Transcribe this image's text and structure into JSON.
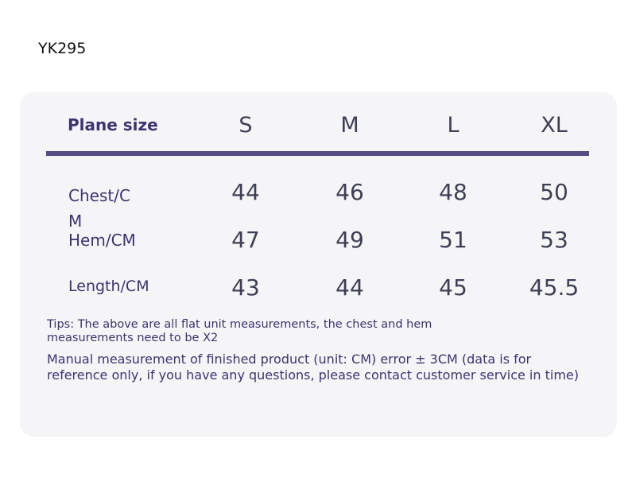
{
  "product_code": "YK295",
  "table": {
    "title": "Plane size",
    "sizes": [
      "S",
      "M",
      "L",
      "XL"
    ],
    "rows": [
      {
        "label": "Chest/C\nM",
        "values": [
          "44",
          "46",
          "48",
          "50"
        ]
      },
      {
        "label": "Hem/CM",
        "values": [
          "47",
          "49",
          "51",
          "53"
        ]
      },
      {
        "label": "Length/CM",
        "values": [
          "43",
          "44",
          "45",
          "45.5"
        ]
      }
    ]
  },
  "notes": {
    "tips": "Tips: The above are all flat unit measurements, the chest and hem measurements need to be X2",
    "manual": "Manual measurement of finished product (unit: CM) error ± 3CM (data is for reference only, if you have any questions, please contact customer service in time)"
  },
  "colors": {
    "accent": "#3b3470",
    "rule": "#534c85",
    "card_bg": "#f5f5f7",
    "value_text": "#3f3f55"
  }
}
